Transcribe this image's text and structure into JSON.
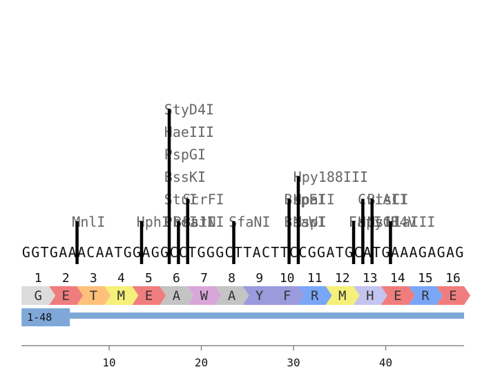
{
  "sequence": "GGTGAAACAATGGAGGCCTGGGCTTACTTCCGGATGCATGAAAGAGAG",
  "sites": [
    {
      "cut": 6,
      "labels": [
        "MnlI"
      ]
    },
    {
      "cut": 13,
      "labels": [
        "HphI"
      ]
    },
    {
      "cut": 16,
      "labels": [
        "PhoI",
        "StuI",
        "BssKI",
        "PspGI",
        "HaeIII",
        "StyD4I"
      ]
    },
    {
      "cut": 17,
      "labels": [
        "BsaJI"
      ]
    },
    {
      "cut": 18,
      "labels": [
        "BstNI",
        "ScrFI"
      ]
    },
    {
      "cut": 23,
      "labels": [
        "SfaNI"
      ]
    },
    {
      "cut": 29,
      "labels": [
        "BsaWI",
        "BspEI"
      ]
    },
    {
      "cut": 30,
      "labels": [
        "MspI",
        "HpaII",
        "Hpy188III"
      ]
    },
    {
      "cut": 36,
      "labels": [
        "FatI"
      ]
    },
    {
      "cut": 37,
      "labels": [
        "HpyCH4V",
        "CviAII"
      ]
    },
    {
      "cut": 38,
      "labels": [
        "NsiI",
        "BtsCI"
      ]
    },
    {
      "cut": 40,
      "labels": [
        "NlaIII"
      ]
    }
  ],
  "translation": {
    "numbers": [
      "1",
      "2",
      "3",
      "4",
      "5",
      "6",
      "7",
      "8",
      "9",
      "10",
      "11",
      "12",
      "13",
      "14",
      "15",
      "16"
    ],
    "aa": [
      "G",
      "E",
      "T",
      "M",
      "E",
      "A",
      "W",
      "A",
      "Y",
      "F",
      "R",
      "M",
      "H",
      "E",
      "R",
      "E"
    ],
    "colors": [
      "#dcdcdc",
      "#f07d7d",
      "#ffc07a",
      "#f4f07a",
      "#f07d7d",
      "#c4c4c4",
      "#d9a6d9",
      "#c4c4c4",
      "#9a9adc",
      "#9a9adc",
      "#7aa6f7",
      "#f4f07a",
      "#c4c4f0",
      "#f07d7d",
      "#7aa6f7",
      "#f07d7d"
    ]
  },
  "region": {
    "label": "1-48",
    "color": "#7fa8d8"
  },
  "axis": {
    "ticks": [
      "10",
      "20",
      "30",
      "40"
    ]
  }
}
